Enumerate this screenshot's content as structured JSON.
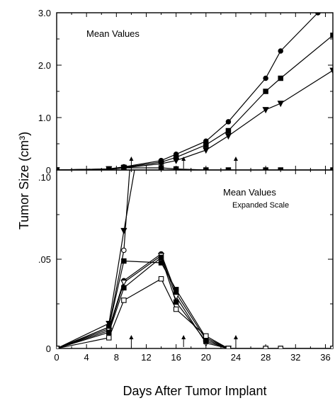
{
  "chart_data": [
    {
      "type": "line",
      "annotation": "Mean Values",
      "ylabel": "Tumor Size (cm³)",
      "xlim": [
        0,
        37
      ],
      "ylim": [
        0,
        3.0
      ],
      "y_ticks": [
        0,
        1.0,
        2.0,
        3.0
      ],
      "y_tick_labels": [
        "0",
        "1.0",
        "2.0",
        "3.0"
      ],
      "arrows_x": [
        10,
        17,
        24
      ],
      "grid": false,
      "series": [
        {
          "marker": "circle",
          "x": [
            0,
            7,
            9,
            14,
            16,
            20,
            23,
            28,
            30,
            35
          ],
          "values": [
            0,
            0.02,
            0.06,
            0.18,
            0.3,
            0.55,
            0.92,
            1.75,
            2.27,
            3.0
          ]
        },
        {
          "marker": "square",
          "x": [
            0,
            7,
            9,
            14,
            16,
            20,
            23,
            28,
            30,
            37
          ],
          "values": [
            0,
            0.02,
            0.05,
            0.15,
            0.24,
            0.48,
            0.75,
            1.5,
            1.75,
            2.57
          ]
        },
        {
          "marker": "triangle-down",
          "x": [
            0,
            7,
            9,
            14,
            16,
            20,
            23,
            28,
            30,
            37
          ],
          "values": [
            0,
            0.02,
            0.04,
            0.12,
            0.18,
            0.38,
            0.65,
            1.15,
            1.27,
            1.9
          ]
        },
        {
          "marker": "square",
          "x": [
            0,
            7,
            9,
            14,
            16,
            20,
            23,
            28,
            30,
            37
          ],
          "values": [
            0,
            0.01,
            0.04,
            0.04,
            0.02,
            0.0,
            0.0,
            0.0,
            0.0,
            0.0
          ]
        }
      ]
    },
    {
      "type": "line",
      "annotation": "Mean Values",
      "annotation_sub": "Expanded Scale",
      "xlabel": "Days After Tumor Implant",
      "xlim": [
        0,
        37
      ],
      "ylim": [
        0,
        0.1
      ],
      "x_ticks": [
        0,
        4,
        8,
        12,
        16,
        20,
        24,
        28,
        32,
        36
      ],
      "x_tick_labels": [
        "0",
        "4",
        "8",
        "12",
        "16",
        "20",
        "24",
        "28",
        "32",
        "36"
      ],
      "y_ticks": [
        0,
        0.05,
        0.1
      ],
      "y_tick_labels": [
        "0",
        ".05",
        ".10"
      ],
      "arrows_x": [
        10,
        17,
        24
      ],
      "grid": false,
      "series": [
        {
          "marker": "triangle-down",
          "x": [
            0,
            7,
            9,
            11.7
          ],
          "values": [
            0,
            0.014,
            0.066,
            0.13
          ]
        },
        {
          "marker": "circle-open",
          "x": [
            0,
            7,
            9,
            10.3
          ],
          "values": [
            0,
            0.012,
            0.055,
            0.13
          ]
        },
        {
          "marker": "square",
          "x": [
            0,
            7,
            9,
            14,
            16,
            20,
            23
          ],
          "values": [
            0,
            0.012,
            0.049,
            0.048,
            0.033,
            0.006,
            0.0
          ]
        },
        {
          "marker": "circle",
          "x": [
            0,
            7,
            9,
            14,
            16,
            20,
            23
          ],
          "values": [
            0,
            0.011,
            0.038,
            0.053,
            0.031,
            0.005,
            0.0
          ]
        },
        {
          "marker": "triangle-down-open",
          "x": [
            0,
            7,
            9,
            14,
            16,
            20,
            23
          ],
          "values": [
            0,
            0.01,
            0.037,
            0.052,
            0.029,
            0.003,
            0.0
          ]
        },
        {
          "marker": "square",
          "x": [
            0,
            7,
            9,
            14,
            16,
            20,
            23,
            28,
            30,
            37
          ],
          "values": [
            0,
            0.009,
            0.034,
            0.051,
            0.026,
            0.004,
            0.0,
            0.0,
            0.0,
            0.0
          ]
        },
        {
          "marker": "square-open",
          "x": [
            0,
            7,
            9,
            14,
            16,
            20,
            23,
            28,
            30,
            37
          ],
          "values": [
            0,
            0.006,
            0.027,
            0.039,
            0.022,
            0.007,
            0.0,
            0.0,
            0.0,
            0.0
          ]
        }
      ]
    }
  ]
}
